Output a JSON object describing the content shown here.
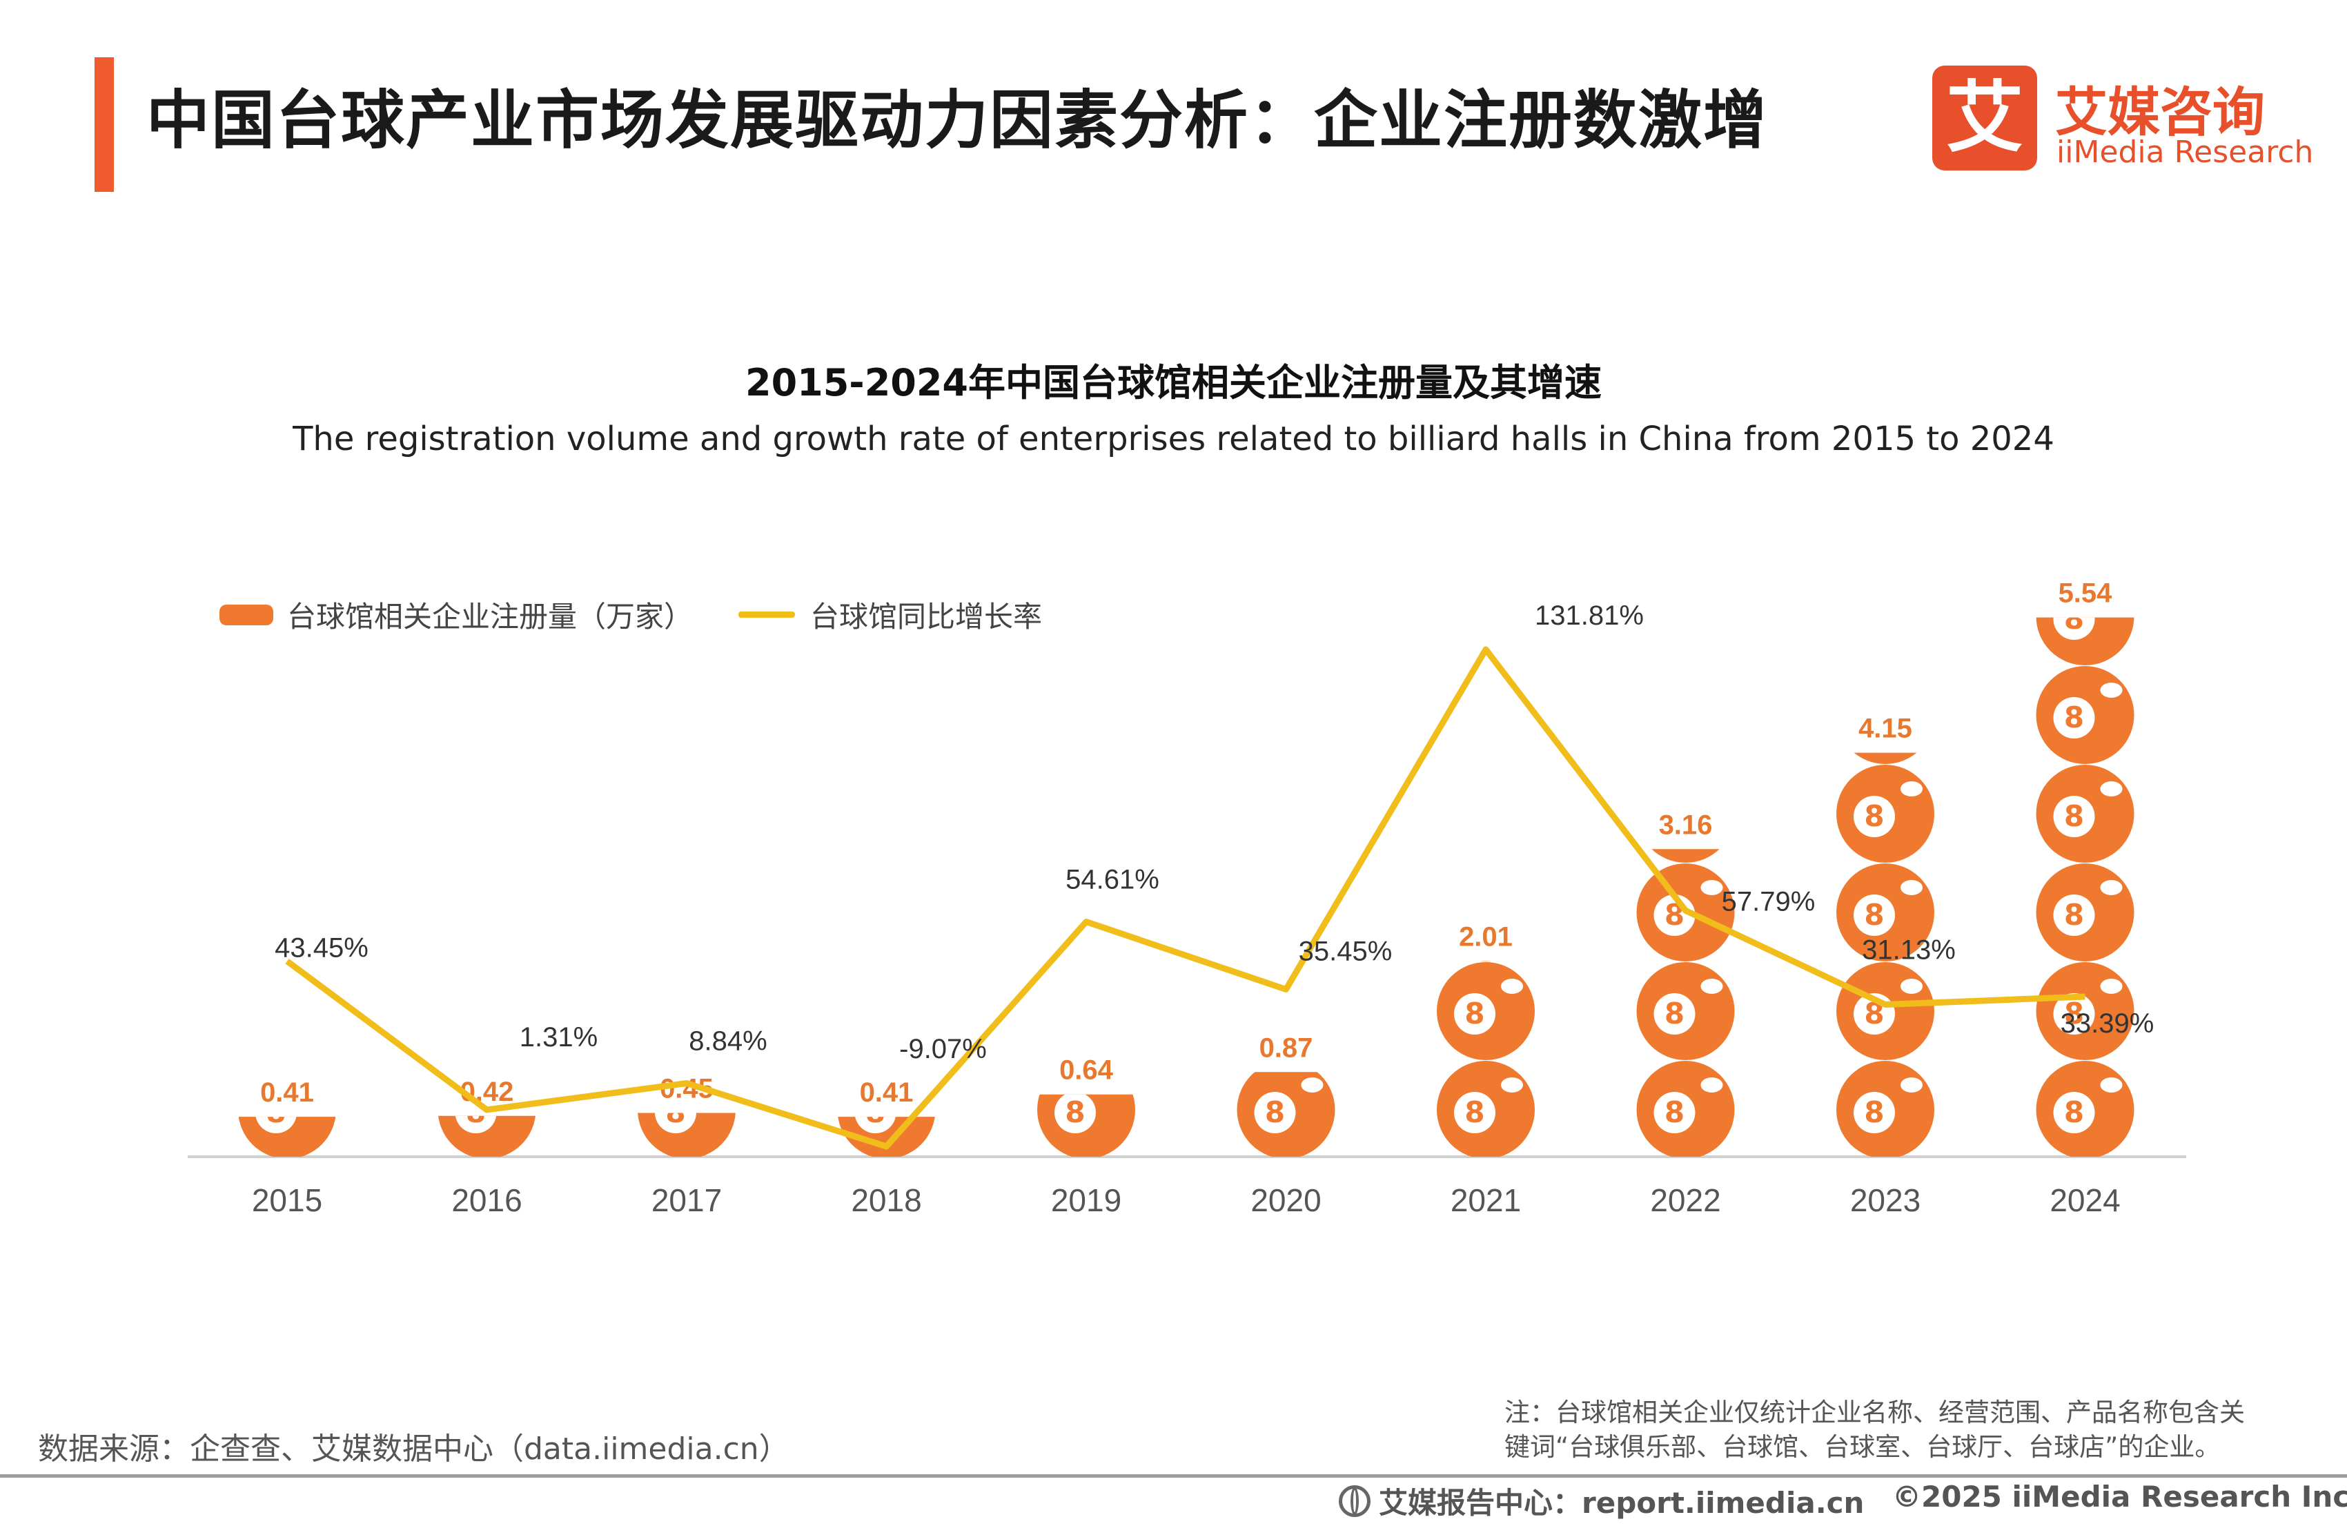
{
  "header": {
    "title": "中国台球产业市场发展驱动力因素分析：企业注册数激增"
  },
  "logo": {
    "mark": "艾",
    "name_cn": "艾媒咨询",
    "name_en": "iiMedia Research"
  },
  "colors": {
    "accent": "#ef5a2f",
    "bar": "#ef7a2f",
    "line": "#f0bd1a",
    "bar_label": "#e8782e"
  },
  "chart_data": {
    "type": "bar",
    "title": "2015-2024年中国台球馆相关企业注册量及其增速",
    "subtitle": "The registration volume and growth rate of enterprises related to billiard halls in China from 2015 to 2024",
    "categories": [
      "2015",
      "2016",
      "2017",
      "2018",
      "2019",
      "2020",
      "2021",
      "2022",
      "2023",
      "2024"
    ],
    "series": [
      {
        "name": "台球馆相关企业注册量（万家）",
        "type": "bar",
        "values": [
          0.41,
          0.42,
          0.45,
          0.41,
          0.64,
          0.87,
          2.01,
          3.16,
          4.15,
          5.54
        ],
        "labels": [
          "0.41",
          "0.42",
          "0.45",
          "0.41",
          "0.64",
          "0.87",
          "2.01",
          "3.16",
          "4.15",
          "5.54"
        ]
      },
      {
        "name": "台球馆同比增长率",
        "type": "line",
        "values": [
          43.45,
          1.31,
          8.84,
          -9.07,
          54.61,
          35.45,
          131.81,
          57.79,
          31.13,
          33.39
        ],
        "labels": [
          "43.45%",
          "1.31%",
          "8.84%",
          "-9.07%",
          "54.61%",
          "35.45%",
          "131.81%",
          "57.79%",
          "31.13%",
          "33.39%"
        ]
      }
    ],
    "bar_ylim": [
      0,
      5.7
    ],
    "line_ylim": [
      -12,
      150
    ],
    "grid": false,
    "legend": "top-left"
  },
  "footer": {
    "source": "数据来源：企查查、艾媒数据中心（data.iimedia.cn）",
    "note_line1": "注：台球馆相关企业仅统计企业名称、经营范围、产品名称包含关",
    "note_line2": "键词“台球俱乐部、台球馆、台球室、台球厅、台球店”的企业。",
    "report_center": "艾媒报告中心：report.iimedia.cn",
    "copyright": "©2025  iiMedia Research  Inc"
  }
}
